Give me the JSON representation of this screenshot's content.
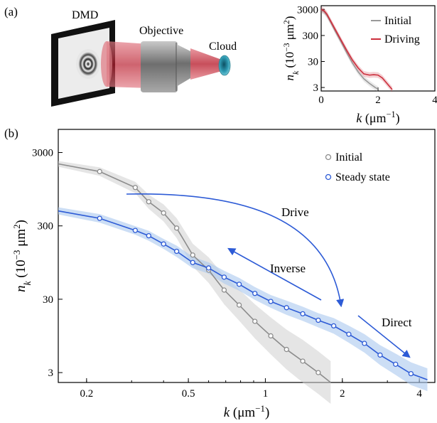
{
  "panels": {
    "a": "(a)",
    "b": "(b)"
  },
  "illustration": {
    "labels": {
      "dmd": "DMD",
      "objective": "Objective",
      "cloud": "Cloud"
    },
    "colors": {
      "beam": "#d43a48",
      "lens_body": "#8a8a8a",
      "cloud": "#4fb8cc",
      "frame": "#111111"
    }
  },
  "axes_text": {
    "k": "k",
    "k_units": " (μm",
    "k_exp": "−1",
    "k_close": ")",
    "n": "n",
    "n_sub": "k",
    "n_units_a": " (10",
    "n_exp": "−3",
    "n_units_b": " μm",
    "n_exp2": "2",
    "n_close": ")"
  },
  "chart_data": [
    {
      "id": "inset",
      "type": "line",
      "xscale": "linear",
      "yscale": "log",
      "xlim": [
        0,
        4
      ],
      "ylim": [
        2.2,
        4200
      ],
      "xticks": [
        0,
        2,
        4
      ],
      "xtick_labels": [
        "0",
        "2",
        "4"
      ],
      "yticks": [
        3,
        30,
        300,
        3000
      ],
      "ytick_labels": [
        "3",
        "30",
        "300",
        "3000"
      ],
      "legend": "top-right",
      "series": [
        {
          "name": "Initial",
          "color": "#999999",
          "x": [
            0,
            0.1,
            0.2,
            0.35,
            0.5,
            0.7,
            0.9,
            1.1,
            1.3,
            1.5,
            1.7,
            1.9,
            2.0
          ],
          "y": [
            2800,
            2500,
            1800,
            900,
            430,
            170,
            65,
            26,
            12,
            6.5,
            4.3,
            3.0,
            2.6
          ]
        },
        {
          "name": "Driving",
          "color": "#cc2e3c",
          "x": [
            0,
            0.1,
            0.2,
            0.35,
            0.5,
            0.7,
            0.9,
            1.1,
            1.3,
            1.5,
            1.7,
            1.85,
            2.0,
            2.15,
            2.3,
            2.5
          ],
          "y": [
            3000,
            2700,
            2000,
            1000,
            500,
            200,
            80,
            34,
            17,
            10,
            9.0,
            9.3,
            9.0,
            7.0,
            4.5,
            2.5
          ]
        }
      ]
    },
    {
      "id": "main",
      "type": "line",
      "xscale": "log",
      "yscale": "log",
      "xlim": [
        0.155,
        4.6
      ],
      "ylim": [
        2.2,
        6200
      ],
      "xticks": [
        0.2,
        0.5,
        1,
        2,
        4
      ],
      "xtick_labels": [
        "0.2",
        "0.5",
        "1",
        "2",
        "4"
      ],
      "yticks": [
        3,
        30,
        300,
        3000
      ],
      "ytick_labels": [
        "3",
        "30",
        "300",
        "3000"
      ],
      "legend": "top-right",
      "series": [
        {
          "name": "Initial",
          "color": "#8c8c8c",
          "band": "#cfcfcf",
          "line_x": [
            0.155,
            1.8
          ],
          "line_y": [
            2100,
            2.2
          ],
          "points_x": [
            0.225,
            0.31,
            0.35,
            0.4,
            0.45,
            0.52,
            0.6,
            0.69,
            0.79,
            0.91,
            1.05,
            1.21,
            1.4,
            1.61
          ],
          "points_y": [
            1650,
            1000,
            640,
            450,
            280,
            120,
            75,
            40,
            25,
            15,
            9.5,
            6.2,
            4.3,
            3.0
          ]
        },
        {
          "name": "Steady state",
          "color": "#2d5bd6",
          "band": "#aac8ee",
          "line_x": [
            0.155,
            4.3
          ],
          "line_y": [
            480,
            2.4
          ],
          "points_x": [
            0.225,
            0.31,
            0.35,
            0.4,
            0.45,
            0.52,
            0.6,
            0.69,
            0.79,
            0.91,
            1.05,
            1.21,
            1.4,
            1.61,
            1.85,
            2.12,
            2.44,
            2.81,
            3.23,
            3.71
          ],
          "points_y": [
            380,
            260,
            220,
            170,
            135,
            95,
            80,
            60,
            48,
            36,
            28,
            23,
            19,
            15.5,
            13,
            10,
            7.5,
            5.2,
            3.9,
            2.9
          ]
        }
      ],
      "annotations": [
        {
          "text": "Drive",
          "color": "#2d5bd6"
        },
        {
          "text": "Inverse",
          "color": "#2d5bd6"
        },
        {
          "text": "Direct",
          "color": "#2d5bd6"
        }
      ]
    }
  ]
}
